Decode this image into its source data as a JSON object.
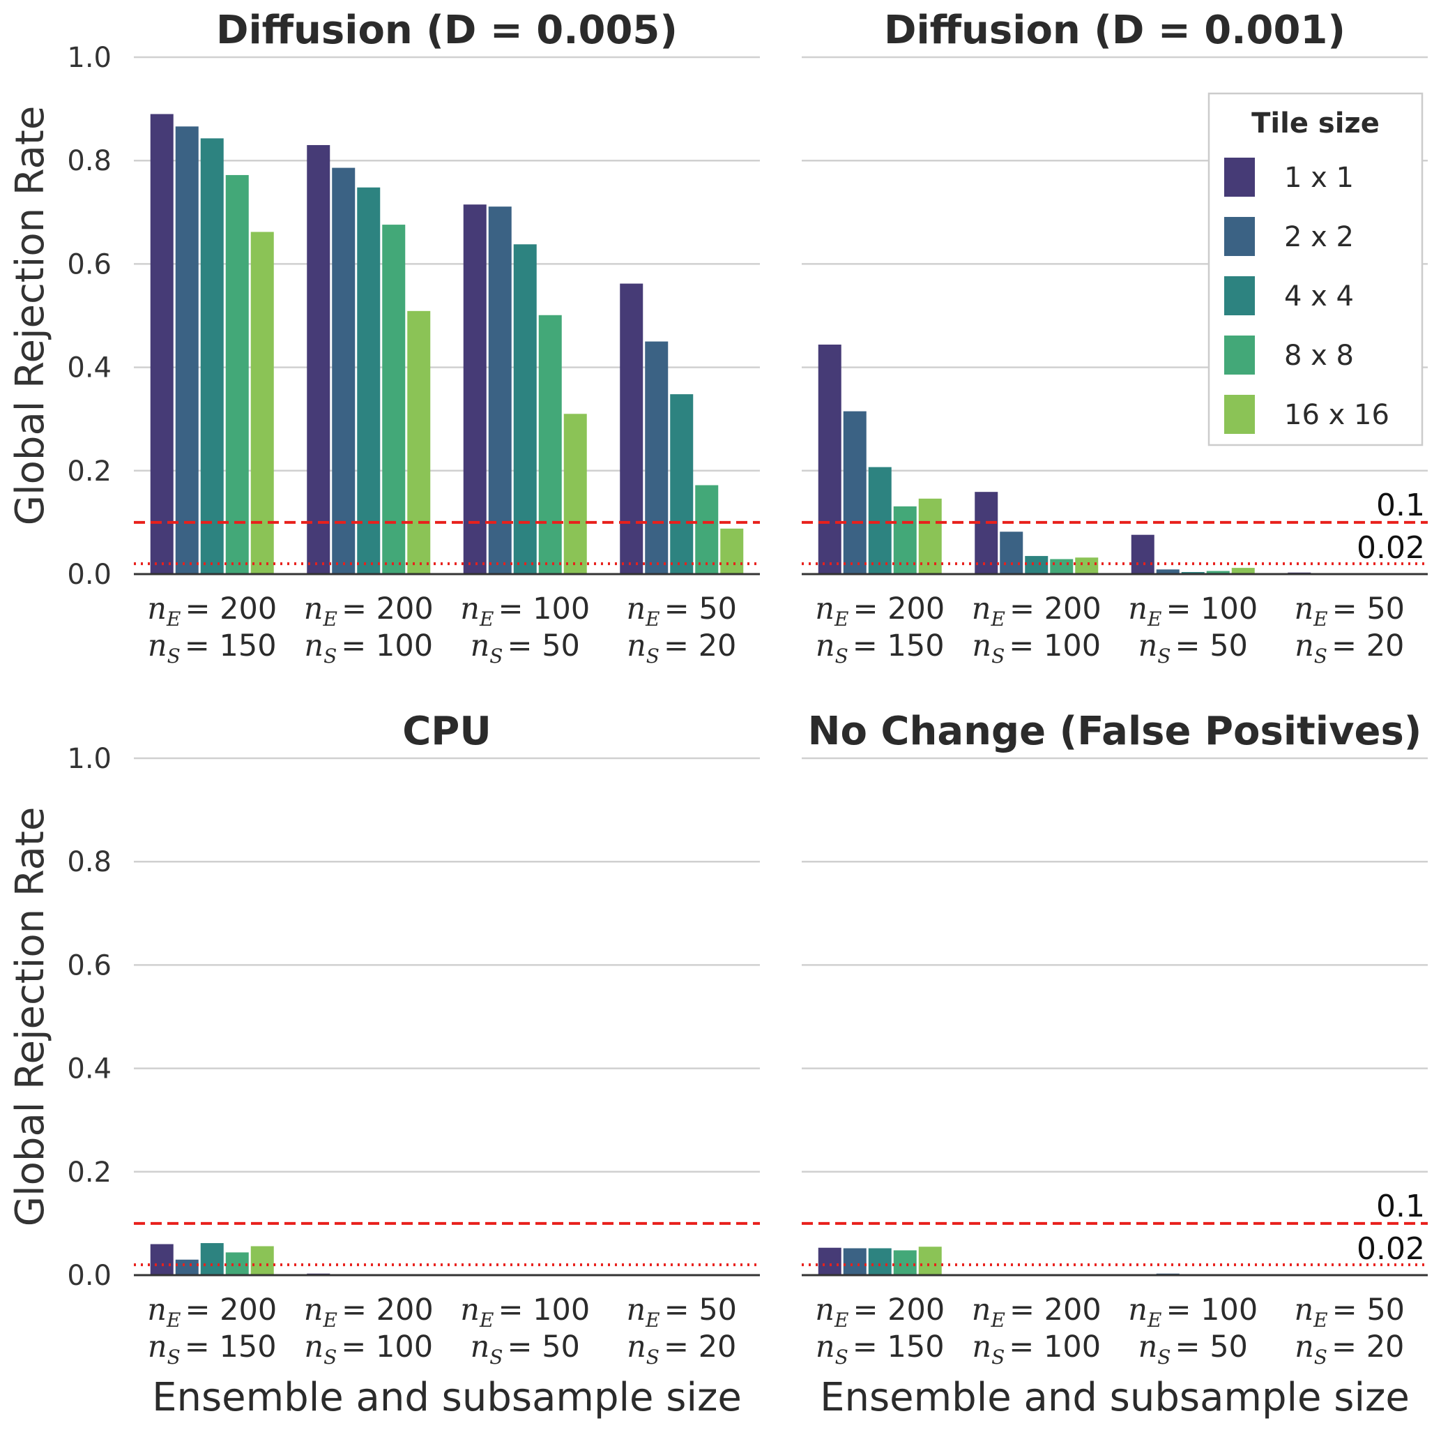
{
  "chart_data": {
    "type": "bar",
    "ylabel": "Global Rejection Rate",
    "xlabel": "Ensemble and subsample size",
    "ylim": [
      0,
      1.0
    ],
    "yticks": [
      "0.0",
      "0.2",
      "0.4",
      "0.6",
      "0.8",
      "1.0"
    ],
    "grid": true,
    "categories": [
      {
        "ne": "200",
        "ns": "150"
      },
      {
        "ne": "200",
        "ns": "100"
      },
      {
        "ne": "100",
        "ns": "50"
      },
      {
        "ne": "50",
        "ns": "20"
      }
    ],
    "reference_lines": [
      {
        "value": 0.1,
        "label": "0.1",
        "style": "dashed",
        "color": "#e8201c"
      },
      {
        "value": 0.02,
        "label": "0.02",
        "style": "dotted",
        "color": "#e8201c"
      }
    ],
    "legend": {
      "title": "Tile size",
      "placement": "top-right",
      "series": [
        {
          "name": "1 x 1",
          "color": "#463b76"
        },
        {
          "name": "2 x 2",
          "color": "#3b6284"
        },
        {
          "name": "4 x 4",
          "color": "#2d8380"
        },
        {
          "name": "8 x 8",
          "color": "#43a878"
        },
        {
          "name": "16 x 16",
          "color": "#8bc356"
        }
      ]
    },
    "panels": [
      {
        "title": "Diffusion (D = 0.005)",
        "show_ref_labels": false,
        "values": [
          [
            0.89,
            0.866,
            0.843,
            0.772,
            0.662
          ],
          [
            0.83,
            0.786,
            0.748,
            0.676,
            0.509
          ],
          [
            0.715,
            0.711,
            0.638,
            0.501,
            0.31
          ],
          [
            0.562,
            0.45,
            0.348,
            0.172,
            0.088
          ]
        ]
      },
      {
        "title": "Diffusion (D = 0.001)",
        "show_ref_labels": true,
        "show_legend": true,
        "values": [
          [
            0.444,
            0.315,
            0.207,
            0.131,
            0.146
          ],
          [
            0.159,
            0.082,
            0.035,
            0.029,
            0.032
          ],
          [
            0.076,
            0.009,
            0.004,
            0.006,
            0.012
          ],
          [
            0.003,
            0.002,
            0.001,
            0.0,
            0.0
          ]
        ]
      },
      {
        "title": "CPU",
        "show_ref_labels": false,
        "values": [
          [
            0.06,
            0.03,
            0.062,
            0.044,
            0.056
          ],
          [
            0.003,
            0.001,
            0.0,
            0.0,
            0.002
          ],
          [
            0.0,
            0.0,
            0.0,
            0.0,
            0.0
          ],
          [
            0.0,
            0.0,
            0.0,
            0.0,
            0.0
          ]
        ]
      },
      {
        "title": "No Change (False Positives)",
        "show_ref_labels": true,
        "values": [
          [
            0.053,
            0.052,
            0.052,
            0.048,
            0.055
          ],
          [
            0.0,
            0.0,
            0.0,
            0.0,
            0.001
          ],
          [
            0.0,
            0.003,
            0.0,
            0.0,
            0.001
          ],
          [
            0.0,
            0.0,
            0.0,
            0.0,
            0.0
          ]
        ]
      }
    ]
  }
}
